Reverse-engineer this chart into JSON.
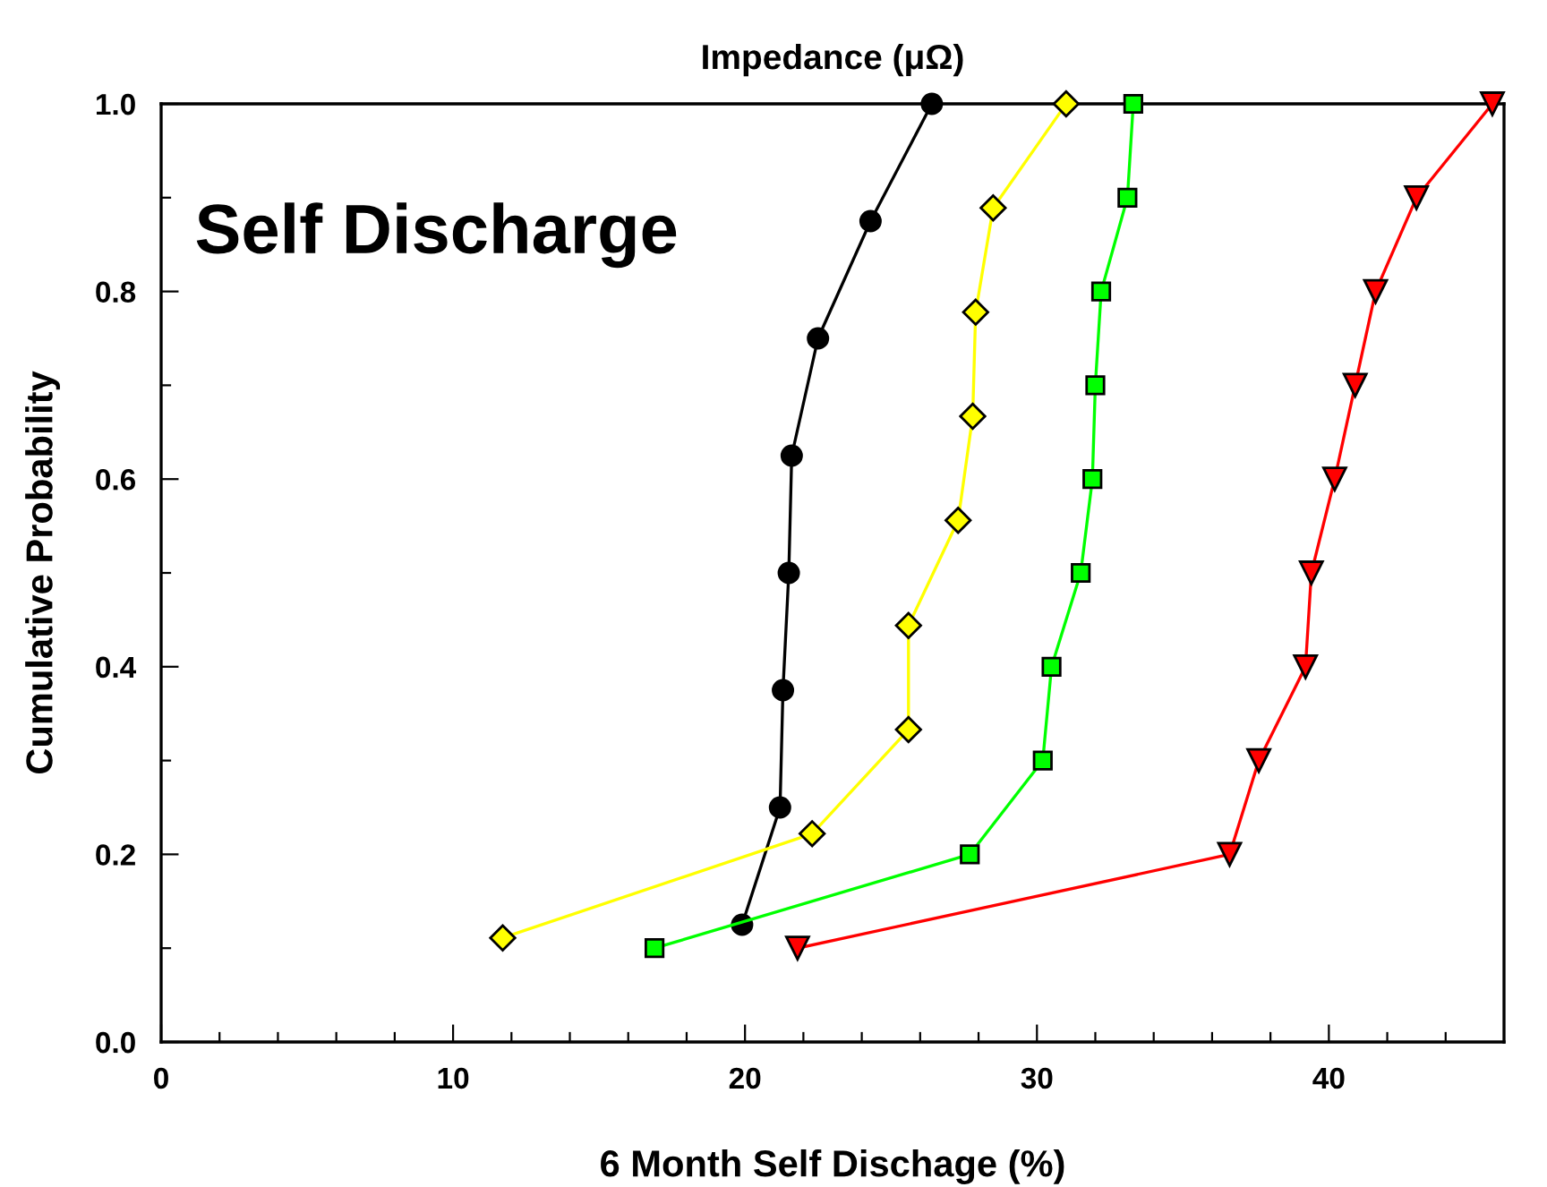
{
  "chart_data": {
    "type": "line",
    "title": "Impedance (μΩ)",
    "xlabel": "6 Month Self Dischage (%)",
    "ylabel": "Cumulative Probability",
    "annotations": [
      "Self Discharge"
    ],
    "xlim": [
      0,
      46
    ],
    "ylim": [
      0,
      1
    ],
    "xticks": [
      0,
      {
        "value": 2,
        "label": null
      },
      {
        "value": 4,
        "label": null
      },
      {
        "value": 6,
        "label": null
      },
      {
        "value": 8,
        "label": null
      },
      10,
      {
        "value": 12,
        "label": null
      },
      {
        "value": 14,
        "label": null
      },
      {
        "value": 16,
        "label": null
      },
      {
        "value": 18,
        "label": null
      },
      20,
      {
        "value": 22,
        "label": null
      },
      {
        "value": 24,
        "label": null
      },
      {
        "value": 26,
        "label": null
      },
      {
        "value": 28,
        "label": null
      },
      30,
      {
        "value": 32,
        "label": null
      },
      {
        "value": 34,
        "label": null
      },
      {
        "value": 36,
        "label": null
      },
      {
        "value": 38,
        "label": null
      },
      40,
      {
        "value": 42,
        "label": null
      },
      {
        "value": 44,
        "label": null
      }
    ],
    "yticks": [
      {
        "value": 0,
        "label": "0.0"
      },
      {
        "value": 0.1,
        "label": null
      },
      {
        "value": 0.2,
        "label": "0.2"
      },
      {
        "value": 0.3,
        "label": null
      },
      {
        "value": 0.4,
        "label": "0.4"
      },
      {
        "value": 0.5,
        "label": null
      },
      {
        "value": 0.6,
        "label": "0.6"
      },
      {
        "value": 0.7,
        "label": null
      },
      {
        "value": 0.8,
        "label": "0.8"
      },
      {
        "value": 0.9,
        "label": null
      },
      {
        "value": 1.0,
        "label": "1.0"
      }
    ],
    "grid": false,
    "line_style": "solid",
    "series": [
      {
        "color": "#000000",
        "marker": "circle",
        "x": [
          19.9,
          21.2,
          21.3,
          21.5,
          21.6,
          22.5,
          24.3,
          26.4
        ],
        "values": [
          0.125,
          0.25,
          0.375,
          0.5,
          0.625,
          0.75,
          0.875,
          1.0
        ]
      },
      {
        "color": "#ffff00",
        "marker": "diamond",
        "x": [
          11.7,
          22.3,
          25.6,
          25.6,
          27.3,
          27.8,
          27.9,
          28.5,
          31.0
        ],
        "values": [
          0.111,
          0.222,
          0.333,
          0.444,
          0.556,
          0.667,
          0.778,
          0.889,
          1.0
        ]
      },
      {
        "color": "#00ff00",
        "marker": "square",
        "x": [
          16.9,
          27.7,
          30.2,
          30.5,
          31.5,
          31.9,
          32.0,
          32.2,
          33.1,
          33.3
        ],
        "values": [
          0.1,
          0.2,
          0.3,
          0.4,
          0.5,
          0.6,
          0.7,
          0.8,
          0.9,
          1.0
        ]
      },
      {
        "color": "#ff0000",
        "marker": "triangle",
        "x": [
          21.8,
          36.6,
          37.6,
          39.2,
          39.4,
          40.2,
          40.9,
          41.6,
          43.0,
          45.6
        ],
        "values": [
          0.1,
          0.2,
          0.3,
          0.4,
          0.5,
          0.6,
          0.7,
          0.8,
          0.9,
          1.0
        ]
      }
    ]
  }
}
